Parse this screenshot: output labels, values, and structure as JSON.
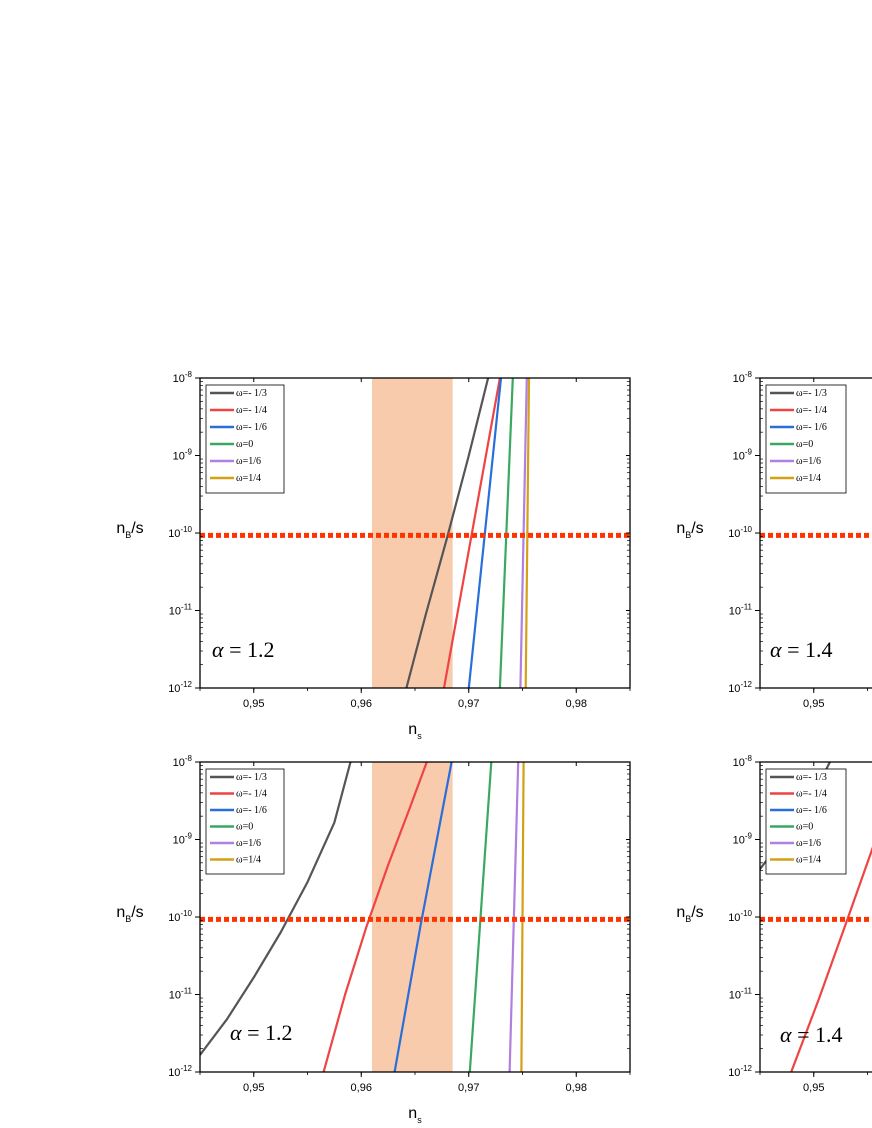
{
  "chart_data": [
    {
      "type": "line",
      "panel": "top-left",
      "xlabel": "n_s",
      "ylabel": "n_B/s",
      "xlim": [
        0.945,
        0.985
      ],
      "ylim_log10": [
        -12,
        -8
      ],
      "yscale": "log",
      "x_ticks": [
        0.95,
        0.96,
        0.97,
        0.98
      ],
      "x_tick_labels": [
        "0,95",
        "0,96",
        "0,97",
        "0,98"
      ],
      "y_ticks_log10": [
        -12,
        -11,
        -10,
        -9,
        -8
      ],
      "y_tick_labels": [
        {
          "base": "10",
          "exp": "-12"
        },
        {
          "base": "10",
          "exp": "-11"
        },
        {
          "base": "10",
          "exp": "-10"
        },
        {
          "base": "10",
          "exp": "-9"
        },
        {
          "base": "10",
          "exp": "-8"
        }
      ],
      "annotation": {
        "greek": "α",
        "text": " = 1.2"
      },
      "band": {
        "x": [
          0.961,
          0.9685
        ],
        "color": "#f8cbad"
      },
      "hline": {
        "y_log10": -10.03,
        "color": "#ff3300"
      },
      "legend_position": "top-left",
      "series": [
        {
          "name": "ω=- 1/3",
          "color": "#555555",
          "x": [
            0.9642,
            0.966,
            0.968,
            0.97,
            0.9718
          ],
          "y_log10": [
            -12,
            -11.05,
            -10.05,
            -9.0,
            -8
          ]
        },
        {
          "name": "ω=- 1/4",
          "color": "#ee4444",
          "x": [
            0.9677,
            0.9729
          ],
          "y_log10": [
            -12,
            -8
          ]
        },
        {
          "name": "ω=- 1/6",
          "color": "#2a6ed9",
          "x": [
            0.97,
            0.973
          ],
          "y_log10": [
            -12,
            -8
          ]
        },
        {
          "name": "ω=0",
          "color": "#3aa860",
          "x": [
            0.9729,
            0.9741
          ],
          "y_log10": [
            -12,
            -8
          ]
        },
        {
          "name": "ω=1/6",
          "color": "#b07fe0",
          "x": [
            0.9748,
            0.9754
          ],
          "y_log10": [
            -12,
            -8
          ]
        },
        {
          "name": "ω=1/4",
          "color": "#d4a017",
          "x": [
            0.9753,
            0.9756
          ],
          "y_log10": [
            -12,
            -8
          ]
        }
      ]
    },
    {
      "type": "line",
      "panel": "top-right",
      "xlabel": "",
      "ylabel": "n_B/s",
      "xlim": [
        0.945,
        0.985
      ],
      "ylim_log10": [
        -12,
        -8
      ],
      "yscale": "log",
      "x_ticks": [
        0.95
      ],
      "x_tick_labels": [
        "0,95"
      ],
      "y_ticks_log10": [
        -12,
        -11,
        -10,
        -9,
        -8
      ],
      "y_tick_labels": [
        {
          "base": "10",
          "exp": "-12"
        },
        {
          "base": "10",
          "exp": "-11"
        },
        {
          "base": "10",
          "exp": "-10"
        },
        {
          "base": "10",
          "exp": "-9"
        },
        {
          "base": "10",
          "exp": "-8"
        }
      ],
      "annotation": {
        "greek": "α",
        "text": " = 1.4"
      },
      "hline": {
        "y_log10": -10.03,
        "color": "#ff3300"
      },
      "legend_position": "top-left",
      "series": [
        {
          "name": "ω=- 1/3",
          "color": "#555555",
          "x": [],
          "y_log10": []
        },
        {
          "name": "ω=- 1/4",
          "color": "#ee4444",
          "x": [],
          "y_log10": []
        },
        {
          "name": "ω=- 1/6",
          "color": "#2a6ed9",
          "x": [],
          "y_log10": []
        },
        {
          "name": "ω=0",
          "color": "#3aa860",
          "x": [],
          "y_log10": []
        },
        {
          "name": "ω=1/6",
          "color": "#b07fe0",
          "x": [],
          "y_log10": []
        },
        {
          "name": "ω=1/4",
          "color": "#d4a017",
          "x": [],
          "y_log10": []
        }
      ]
    },
    {
      "type": "line",
      "panel": "bottom-left",
      "xlabel": "n_s",
      "ylabel": "n_B/s",
      "xlim": [
        0.945,
        0.985
      ],
      "ylim_log10": [
        -12,
        -8
      ],
      "yscale": "log",
      "x_ticks": [
        0.95,
        0.96,
        0.97,
        0.98
      ],
      "x_tick_labels": [
        "0,95",
        "0,96",
        "0,97",
        "0,98"
      ],
      "y_ticks_log10": [
        -12,
        -11,
        -10,
        -9,
        -8
      ],
      "y_tick_labels": [
        {
          "base": "10",
          "exp": "-12"
        },
        {
          "base": "10",
          "exp": "-11"
        },
        {
          "base": "10",
          "exp": "-10"
        },
        {
          "base": "10",
          "exp": "-9"
        },
        {
          "base": "10",
          "exp": "-8"
        }
      ],
      "annotation": {
        "greek": "α",
        "text": " = 1.2"
      },
      "band": {
        "x": [
          0.961,
          0.9685
        ],
        "color": "#f8cbad"
      },
      "hline": {
        "y_log10": -10.03,
        "color": "#ff3300"
      },
      "legend_position": "top-left",
      "series": [
        {
          "name": "ω=- 1/3",
          "color": "#555555",
          "x": [
            0.945,
            0.9475,
            0.95,
            0.9525,
            0.955,
            0.9575,
            0.959
          ],
          "y_log10": [
            -11.78,
            -11.32,
            -10.78,
            -10.2,
            -9.55,
            -8.78,
            -8
          ]
        },
        {
          "name": "ω=- 1/4",
          "color": "#ee4444",
          "x": [
            0.9565,
            0.9585,
            0.9605,
            0.9625,
            0.9645,
            0.9661
          ],
          "y_log10": [
            -12,
            -11.0,
            -10.12,
            -9.33,
            -8.6,
            -8
          ]
        },
        {
          "name": "ω=- 1/6",
          "color": "#2a6ed9",
          "x": [
            0.9631,
            0.9655,
            0.9684
          ],
          "y_log10": [
            -12,
            -10.12,
            -8
          ]
        },
        {
          "name": "ω=0",
          "color": "#3aa860",
          "x": [
            0.9701,
            0.9721
          ],
          "y_log10": [
            -12,
            -8
          ]
        },
        {
          "name": "ω=1/6",
          "color": "#b07fe0",
          "x": [
            0.9738,
            0.9746
          ],
          "y_log10": [
            -12,
            -8
          ]
        },
        {
          "name": "ω=1/4",
          "color": "#d4a017",
          "x": [
            0.9749,
            0.9751
          ],
          "y_log10": [
            -12,
            -8
          ]
        }
      ]
    },
    {
      "type": "line",
      "panel": "bottom-right",
      "xlabel": "",
      "ylabel": "n_B/s",
      "xlim": [
        0.945,
        0.985
      ],
      "ylim_log10": [
        -12,
        -8
      ],
      "yscale": "log",
      "x_ticks": [
        0.95
      ],
      "x_tick_labels": [
        "0,95"
      ],
      "y_ticks_log10": [
        -12,
        -11,
        -10,
        -9,
        -8
      ],
      "y_tick_labels": [
        {
          "base": "10",
          "exp": "-12"
        },
        {
          "base": "10",
          "exp": "-11"
        },
        {
          "base": "10",
          "exp": "-10"
        },
        {
          "base": "10",
          "exp": "-9"
        },
        {
          "base": "10",
          "exp": "-8"
        }
      ],
      "annotation": {
        "greek": "α",
        "text": " = 1.4"
      },
      "hline": {
        "y_log10": -10.03,
        "color": "#ff3300"
      },
      "legend_position": "top-left",
      "series": [
        {
          "name": "ω=- 1/3",
          "color": "#555555",
          "x": [
            0.9449,
            0.946,
            0.9475,
            0.9495,
            0.9515
          ],
          "y_log10": [
            -9.4,
            -9.2,
            -8.95,
            -8.55,
            -8
          ]
        },
        {
          "name": "ω=- 1/4",
          "color": "#ee4444",
          "x": [
            0.9479,
            0.9505,
            0.953,
            0.9555,
            0.9578
          ],
          "y_log10": [
            -12,
            -11.05,
            -10.08,
            -9.1,
            -8.1
          ]
        },
        {
          "name": "ω=- 1/6",
          "color": "#2a6ed9",
          "x": [],
          "y_log10": []
        },
        {
          "name": "ω=0",
          "color": "#3aa860",
          "x": [],
          "y_log10": []
        },
        {
          "name": "ω=1/6",
          "color": "#b07fe0",
          "x": [],
          "y_log10": []
        },
        {
          "name": "ω=1/4",
          "color": "#d4a017",
          "x": [],
          "y_log10": []
        }
      ]
    }
  ]
}
